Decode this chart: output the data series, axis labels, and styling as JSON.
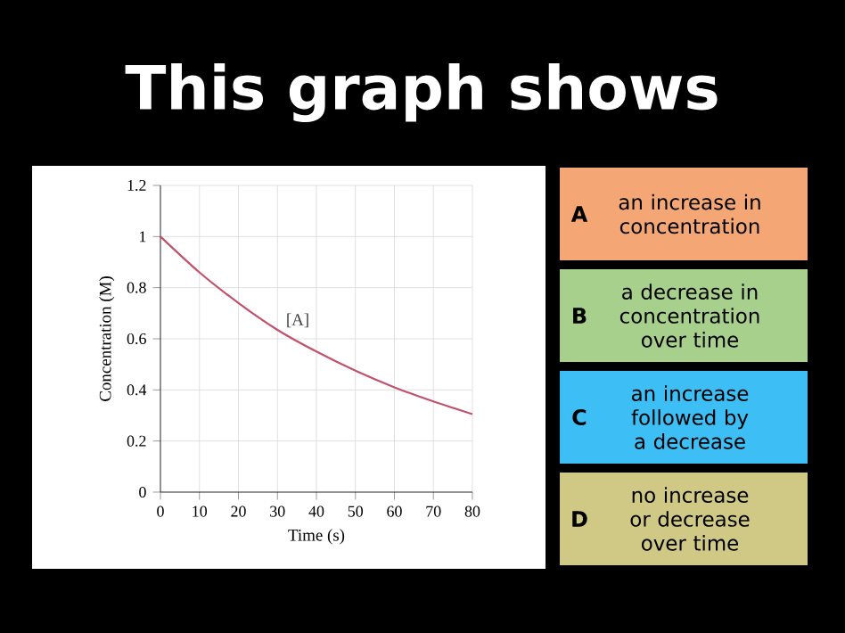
{
  "chart_data": [
    {
      "type": "line",
      "title": "This graph shows",
      "xlabel": "Time (s)",
      "ylabel": "Concentration (M)",
      "x": [
        0,
        10,
        20,
        30,
        40,
        50,
        60,
        70,
        80
      ],
      "values": [
        1,
        0.86,
        0.74,
        0.635,
        0.55,
        0.475,
        0.41,
        0.355,
        0.305
      ],
      "color": "#c4516b",
      "xlim": [
        0,
        80
      ],
      "ylim": [
        0,
        1.2
      ],
      "xticks": [
        0,
        10,
        20,
        30,
        40,
        50,
        60,
        70,
        80
      ],
      "yticks": [
        0,
        0.2,
        0.4,
        0.6,
        0.8,
        1,
        1.2
      ],
      "grid": true,
      "annotations": [
        "[A]"
      ]
    },
    {
      "type": "other",
      "categories": [
        "A",
        "B",
        "C",
        "D"
      ],
      "annotations": [
        "an increase in concentration",
        "a decrease in concentration over time",
        "an increase followed by a decrease",
        "no increase or decrease over time"
      ],
      "colors": [
        "#f4a774",
        "#a8d08d",
        "#3dbff5",
        "#cfc985"
      ]
    }
  ]
}
